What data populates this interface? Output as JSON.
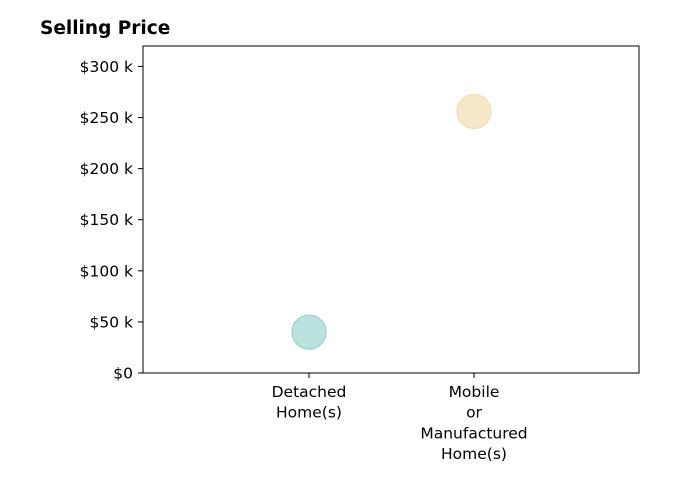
{
  "chart_data": {
    "type": "scatter",
    "title": "Selling Price",
    "xlabel": "",
    "ylabel": "",
    "categories": [
      [
        "Detached",
        "Home(s)"
      ],
      [
        "Mobile",
        "or",
        "Manufactured",
        "Home(s)"
      ]
    ],
    "values": [
      40000,
      256000
    ],
    "point_colors": [
      "#b2dfdb",
      "#f7e6c4"
    ],
    "point_stroke_colors": [
      "#9fcfcb",
      "#eedcb8"
    ],
    "ylim": [
      0,
      320000
    ],
    "yticks": [
      0,
      50000,
      100000,
      150000,
      200000,
      250000,
      300000
    ],
    "ytick_labels": [
      "$0",
      "$50 k",
      "$100 k",
      "$150 k",
      "$200 k",
      "$250 k",
      "$300 k"
    ],
    "grid": false,
    "legend": "none"
  }
}
